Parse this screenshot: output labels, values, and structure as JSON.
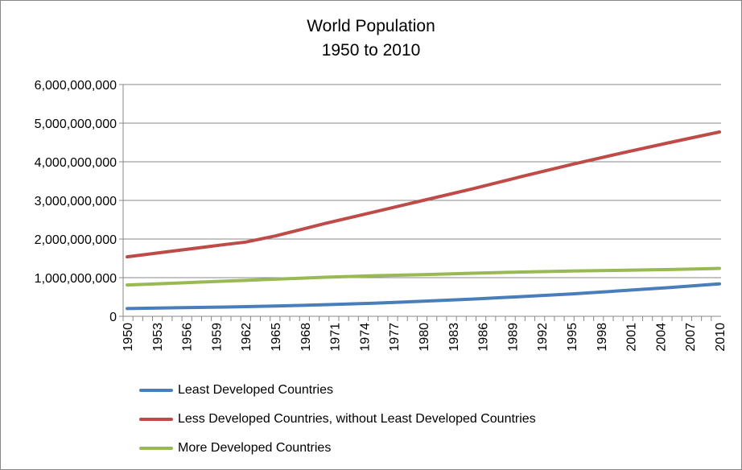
{
  "chart_data": {
    "type": "line",
    "title": "World Population",
    "subtitle": "1950 to 2010",
    "xlabel": "",
    "ylabel": "",
    "xlim": [
      1950,
      2010
    ],
    "ylim": [
      0,
      6000000000
    ],
    "y_ticks": [
      "0",
      "1,000,000,000",
      "2,000,000,000",
      "3,000,000,000",
      "4,000,000,000",
      "5,000,000,000",
      "6,000,000,000"
    ],
    "x_tick_labels": [
      "1950",
      "1953",
      "1956",
      "1959",
      "1962",
      "1965",
      "1968",
      "1971",
      "1974",
      "1977",
      "1980",
      "1983",
      "1986",
      "1989",
      "1992",
      "1995",
      "1998",
      "2001",
      "2004",
      "2007",
      "2010"
    ],
    "grid": "horizontal",
    "legend_position": "bottom",
    "x": [
      1950,
      1955,
      1960,
      1962,
      1965,
      1970,
      1975,
      1980,
      1985,
      1990,
      1995,
      2000,
      2005,
      2010
    ],
    "series": [
      {
        "name": "Least Developed Countries",
        "color": "#4a7ebb",
        "values": [
          200000000,
          220000000,
          240000000,
          250000000,
          265000000,
          300000000,
          340000000,
          390000000,
          445000000,
          510000000,
          580000000,
          660000000,
          745000000,
          840000000
        ]
      },
      {
        "name": "Less Developed Countries, without Least Developed Countries",
        "color": "#be4b48",
        "values": [
          1540000000,
          1700000000,
          1860000000,
          1920000000,
          2080000000,
          2400000000,
          2700000000,
          3000000000,
          3300000000,
          3620000000,
          3930000000,
          4220000000,
          4500000000,
          4770000000
        ]
      },
      {
        "name": "More Developed Countries",
        "color": "#98b954",
        "values": [
          810000000,
          860000000,
          910000000,
          930000000,
          960000000,
          1010000000,
          1050000000,
          1080000000,
          1115000000,
          1145000000,
          1170000000,
          1190000000,
          1210000000,
          1240000000
        ]
      }
    ]
  }
}
